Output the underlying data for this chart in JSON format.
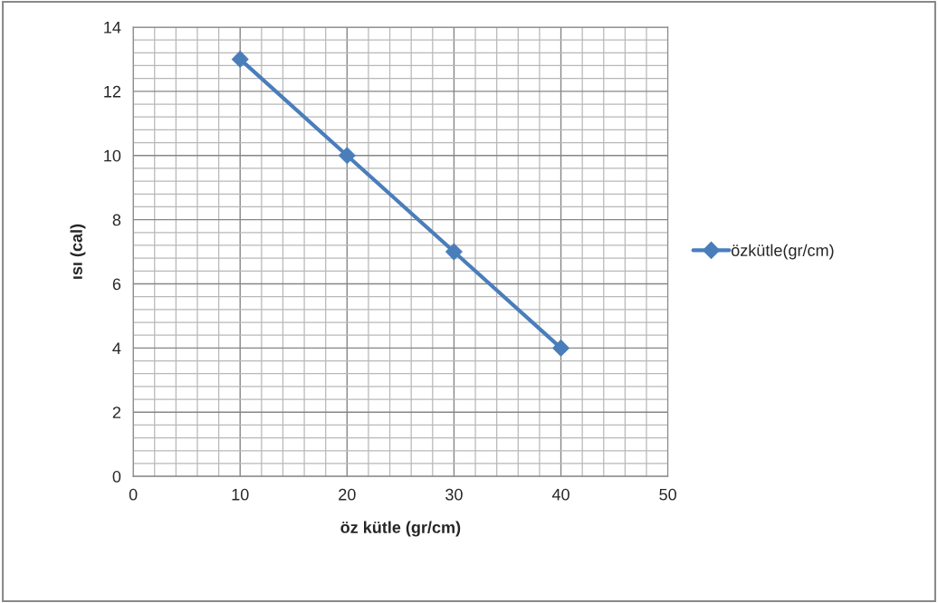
{
  "chart_data": {
    "type": "line",
    "xlabel": "öz kütle (gr/cm)",
    "ylabel": "ısı (cal)",
    "x": [
      10,
      20,
      30,
      40
    ],
    "series": [
      {
        "name": "özkütle(gr/cm)",
        "color": "#4a7ebb",
        "values": [
          13,
          10,
          7,
          4
        ]
      }
    ],
    "xlim": [
      0,
      50
    ],
    "xticks": [
      0,
      10,
      20,
      30,
      40,
      50
    ],
    "ylim": [
      0,
      14
    ],
    "yticks": [
      0,
      2,
      4,
      6,
      8,
      10,
      12,
      14
    ],
    "grid": true,
    "legend": "right",
    "marker": "diamond",
    "line_style": "solid"
  }
}
